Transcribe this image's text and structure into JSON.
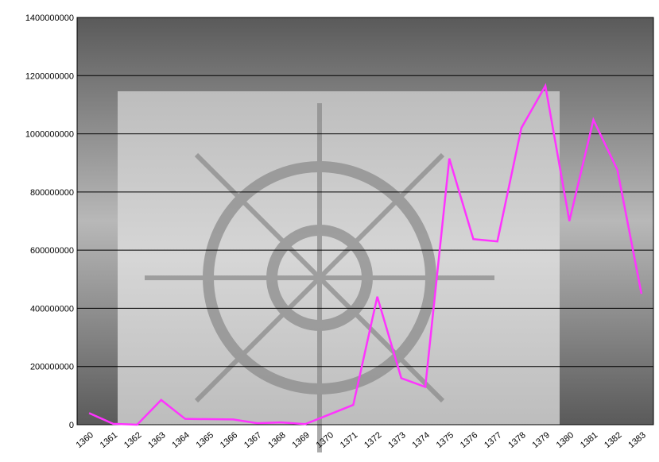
{
  "chart_data": {
    "type": "line",
    "categories": [
      "1360",
      "1361",
      "1362",
      "1363",
      "1364",
      "1365",
      "1366",
      "1367",
      "1368",
      "1369",
      "1370",
      "1371",
      "1372",
      "1373",
      "1374",
      "1375",
      "1376",
      "1377",
      "1378",
      "1379",
      "1380",
      "1381",
      "1382",
      "1383"
    ],
    "series": [
      {
        "color": "#ff33ff",
        "values": [
          40000000,
          3000000,
          0,
          85000000,
          20000000,
          19000000,
          18000000,
          5000000,
          8000000,
          2000000,
          35000000,
          68000000,
          440000000,
          160000000,
          130000000,
          915000000,
          638000000,
          630000000,
          1020000000,
          1165000000,
          700000000,
          1048000000,
          876000000,
          450000000
        ]
      }
    ],
    "ylim": [
      0,
      1400000000
    ],
    "yticks": [
      0,
      200000000,
      400000000,
      600000000,
      800000000,
      1000000000,
      1200000000,
      1400000000
    ],
    "grid": true
  }
}
